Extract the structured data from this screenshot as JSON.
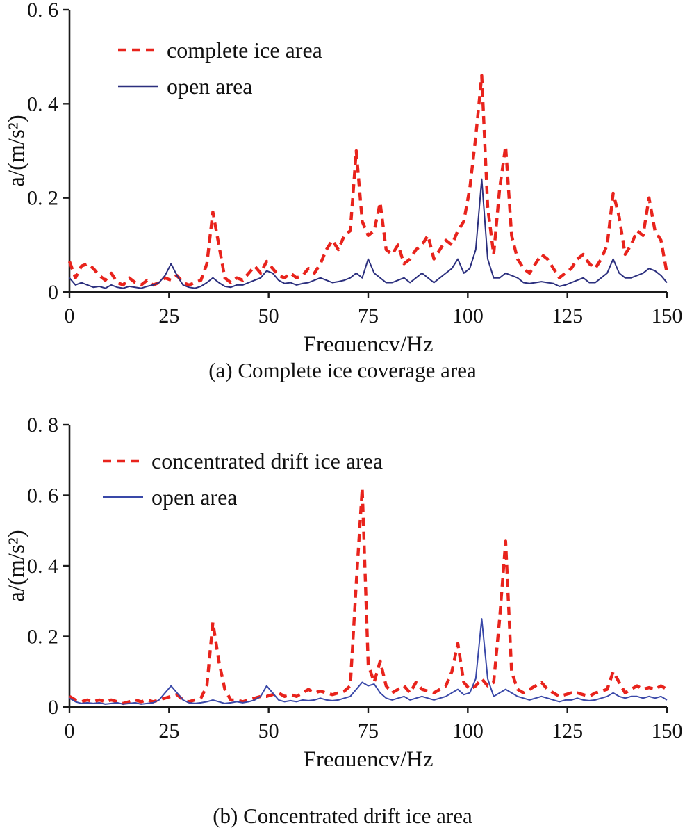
{
  "figure": {
    "background": "#ffffff",
    "text_color": "#111111",
    "axis_color": "#1a1a1a"
  },
  "chart_data": [
    {
      "type": "line",
      "caption": "(a) Complete ice coverage area",
      "xlabel": "Frequency/Hz",
      "ylabel": "a/(m/s²)",
      "xlim": [
        0,
        150
      ],
      "ylim": [
        0,
        0.6
      ],
      "grid": false,
      "legend_position": "upper-left-inside",
      "xticks": [
        {
          "v": 0,
          "label": "0"
        },
        {
          "v": 25,
          "label": "25"
        },
        {
          "v": 50,
          "label": "50"
        },
        {
          "v": 75,
          "label": "75"
        },
        {
          "v": 100,
          "label": "100"
        },
        {
          "v": 125,
          "label": "125"
        },
        {
          "v": 150,
          "label": "150"
        }
      ],
      "yticks": [
        {
          "v": 0,
          "label": "0"
        },
        {
          "v": 0.2,
          "label": "0. 2"
        },
        {
          "v": 0.4,
          "label": "0. 4"
        },
        {
          "v": 0.6,
          "label": "0. 6"
        }
      ],
      "series": [
        {
          "name": "complete ice area",
          "color": "#e8231c",
          "dashed": true,
          "width": 4.4,
          "x0": 0,
          "dx": 1.5,
          "values": [
            0.065,
            0.03,
            0.055,
            0.06,
            0.05,
            0.035,
            0.025,
            0.04,
            0.02,
            0.015,
            0.03,
            0.02,
            0.015,
            0.025,
            0.015,
            0.02,
            0.03,
            0.025,
            0.035,
            0.02,
            0.015,
            0.02,
            0.025,
            0.06,
            0.17,
            0.1,
            0.03,
            0.02,
            0.03,
            0.025,
            0.04,
            0.055,
            0.04,
            0.065,
            0.05,
            0.035,
            0.03,
            0.04,
            0.03,
            0.035,
            0.05,
            0.04,
            0.06,
            0.09,
            0.11,
            0.09,
            0.12,
            0.13,
            0.3,
            0.15,
            0.12,
            0.13,
            0.19,
            0.09,
            0.08,
            0.1,
            0.06,
            0.07,
            0.09,
            0.1,
            0.12,
            0.07,
            0.09,
            0.11,
            0.1,
            0.13,
            0.15,
            0.22,
            0.33,
            0.46,
            0.18,
            0.08,
            0.22,
            0.31,
            0.12,
            0.07,
            0.05,
            0.04,
            0.06,
            0.08,
            0.07,
            0.05,
            0.03,
            0.04,
            0.05,
            0.07,
            0.08,
            0.06,
            0.05,
            0.07,
            0.1,
            0.21,
            0.16,
            0.08,
            0.1,
            0.13,
            0.12,
            0.2,
            0.13,
            0.11,
            0.04
          ]
        },
        {
          "name": "open area",
          "color": "#2b2f7e",
          "dashed": false,
          "width": 2,
          "x0": 0,
          "dx": 1.5,
          "values": [
            0.03,
            0.015,
            0.02,
            0.015,
            0.01,
            0.012,
            0.008,
            0.015,
            0.01,
            0.008,
            0.012,
            0.01,
            0.008,
            0.012,
            0.015,
            0.02,
            0.035,
            0.06,
            0.035,
            0.015,
            0.01,
            0.008,
            0.012,
            0.02,
            0.03,
            0.02,
            0.012,
            0.01,
            0.015,
            0.015,
            0.02,
            0.025,
            0.03,
            0.045,
            0.04,
            0.025,
            0.018,
            0.02,
            0.015,
            0.018,
            0.02,
            0.025,
            0.03,
            0.025,
            0.02,
            0.022,
            0.025,
            0.03,
            0.04,
            0.03,
            0.07,
            0.04,
            0.03,
            0.02,
            0.02,
            0.025,
            0.03,
            0.02,
            0.03,
            0.04,
            0.03,
            0.02,
            0.03,
            0.04,
            0.05,
            0.07,
            0.04,
            0.05,
            0.09,
            0.24,
            0.07,
            0.03,
            0.03,
            0.04,
            0.035,
            0.03,
            0.02,
            0.018,
            0.02,
            0.022,
            0.02,
            0.018,
            0.012,
            0.015,
            0.02,
            0.025,
            0.03,
            0.02,
            0.02,
            0.03,
            0.04,
            0.07,
            0.04,
            0.03,
            0.03,
            0.035,
            0.04,
            0.05,
            0.045,
            0.035,
            0.02
          ]
        }
      ]
    },
    {
      "type": "line",
      "caption": "(b) Concentrated drift ice area",
      "xlabel": "Frequency/Hz",
      "ylabel": "a/(m/s²)",
      "xlim": [
        0,
        150
      ],
      "ylim": [
        0,
        0.8
      ],
      "grid": false,
      "legend_position": "upper-left-inside",
      "xticks": [
        {
          "v": 0,
          "label": "0"
        },
        {
          "v": 25,
          "label": "25"
        },
        {
          "v": 50,
          "label": "50"
        },
        {
          "v": 75,
          "label": "75"
        },
        {
          "v": 100,
          "label": "100"
        },
        {
          "v": 125,
          "label": "125"
        },
        {
          "v": 150,
          "label": "150"
        }
      ],
      "yticks": [
        {
          "v": 0,
          "label": "0"
        },
        {
          "v": 0.2,
          "label": "0. 2"
        },
        {
          "v": 0.4,
          "label": "0. 4"
        },
        {
          "v": 0.6,
          "label": "0. 6"
        },
        {
          "v": 0.8,
          "label": "0. 8"
        }
      ],
      "series": [
        {
          "name": "concentrated drift ice area",
          "color": "#e8231c",
          "dashed": true,
          "width": 4.4,
          "x0": 0,
          "dx": 1.5,
          "values": [
            0.03,
            0.02,
            0.015,
            0.02,
            0.015,
            0.02,
            0.015,
            0.02,
            0.015,
            0.01,
            0.015,
            0.02,
            0.015,
            0.02,
            0.015,
            0.02,
            0.025,
            0.03,
            0.035,
            0.02,
            0.015,
            0.02,
            0.025,
            0.06,
            0.24,
            0.13,
            0.05,
            0.02,
            0.02,
            0.015,
            0.02,
            0.025,
            0.03,
            0.03,
            0.035,
            0.04,
            0.03,
            0.035,
            0.03,
            0.04,
            0.05,
            0.04,
            0.045,
            0.04,
            0.035,
            0.04,
            0.045,
            0.06,
            0.35,
            0.62,
            0.12,
            0.07,
            0.13,
            0.06,
            0.04,
            0.05,
            0.06,
            0.04,
            0.07,
            0.05,
            0.045,
            0.04,
            0.05,
            0.06,
            0.1,
            0.18,
            0.07,
            0.05,
            0.06,
            0.08,
            0.06,
            0.07,
            0.25,
            0.47,
            0.1,
            0.05,
            0.04,
            0.05,
            0.06,
            0.07,
            0.05,
            0.04,
            0.03,
            0.035,
            0.04,
            0.04,
            0.035,
            0.03,
            0.04,
            0.045,
            0.05,
            0.1,
            0.07,
            0.04,
            0.05,
            0.06,
            0.05,
            0.055,
            0.05,
            0.06,
            0.05
          ]
        },
        {
          "name": "open area",
          "color": "#3948a8",
          "dashed": false,
          "width": 2,
          "x0": 0,
          "dx": 1.5,
          "values": [
            0.025,
            0.015,
            0.01,
            0.012,
            0.01,
            0.012,
            0.008,
            0.01,
            0.012,
            0.008,
            0.01,
            0.012,
            0.008,
            0.01,
            0.012,
            0.02,
            0.04,
            0.06,
            0.04,
            0.02,
            0.012,
            0.01,
            0.012,
            0.015,
            0.02,
            0.015,
            0.01,
            0.012,
            0.015,
            0.012,
            0.015,
            0.02,
            0.03,
            0.06,
            0.04,
            0.02,
            0.015,
            0.018,
            0.015,
            0.02,
            0.018,
            0.02,
            0.025,
            0.02,
            0.018,
            0.02,
            0.025,
            0.03,
            0.05,
            0.07,
            0.06,
            0.065,
            0.04,
            0.025,
            0.02,
            0.025,
            0.03,
            0.02,
            0.025,
            0.03,
            0.025,
            0.02,
            0.025,
            0.03,
            0.04,
            0.05,
            0.035,
            0.04,
            0.08,
            0.25,
            0.08,
            0.03,
            0.04,
            0.05,
            0.04,
            0.03,
            0.025,
            0.02,
            0.025,
            0.03,
            0.025,
            0.02,
            0.015,
            0.02,
            0.02,
            0.025,
            0.02,
            0.018,
            0.02,
            0.025,
            0.03,
            0.04,
            0.03,
            0.025,
            0.03,
            0.03,
            0.025,
            0.03,
            0.025,
            0.03,
            0.02
          ]
        }
      ]
    }
  ]
}
